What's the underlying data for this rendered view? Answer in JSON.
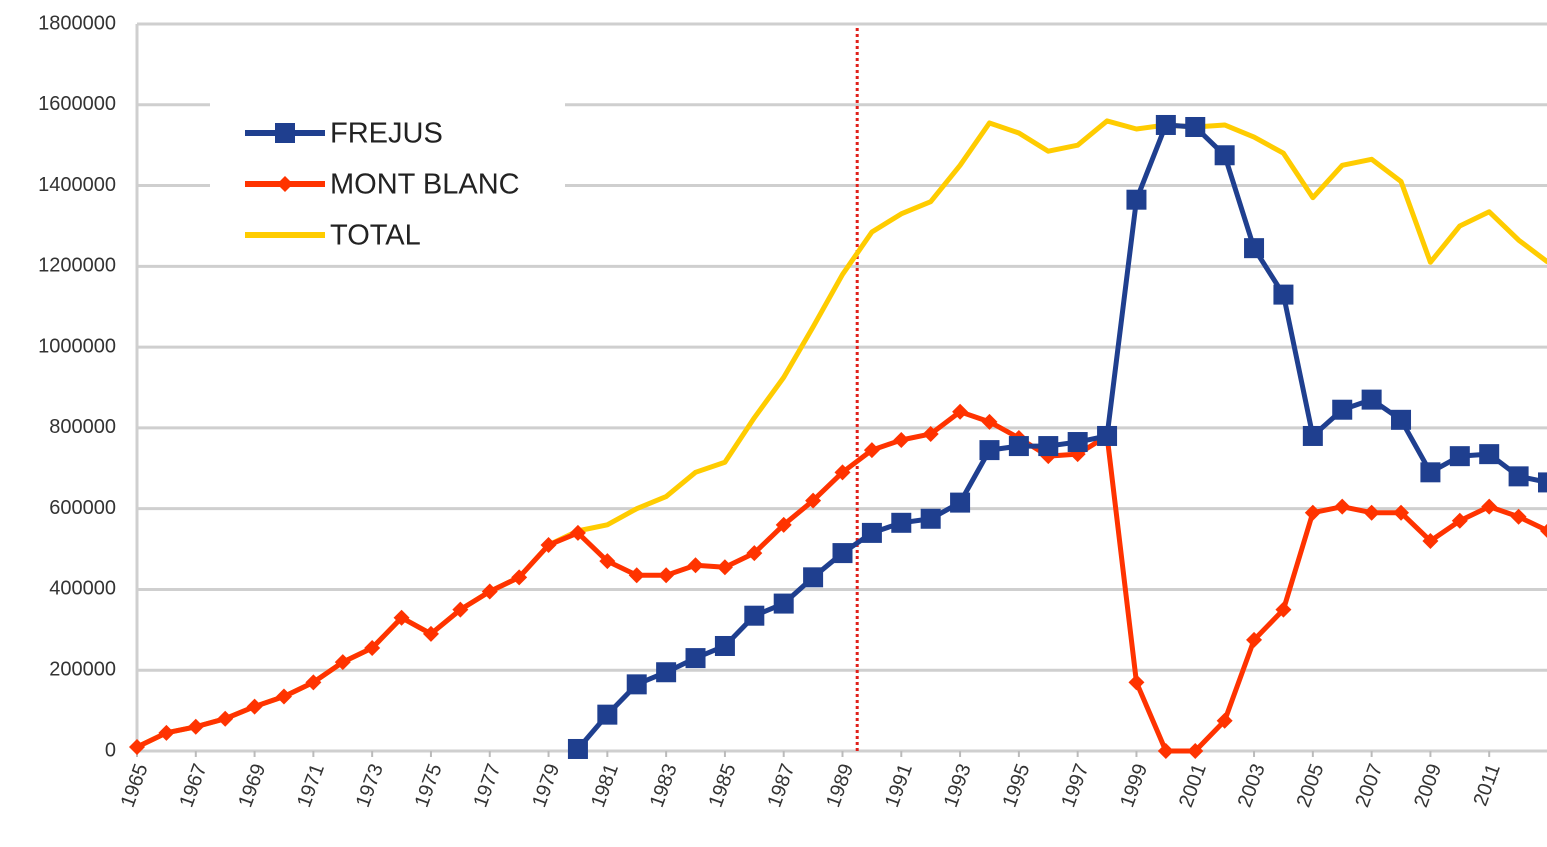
{
  "chart_data": {
    "type": "line",
    "x": [
      1965,
      1966,
      1967,
      1968,
      1969,
      1970,
      1971,
      1972,
      1973,
      1974,
      1975,
      1976,
      1977,
      1978,
      1979,
      1980,
      1981,
      1982,
      1983,
      1984,
      1985,
      1986,
      1987,
      1988,
      1989,
      1990,
      1991,
      1992,
      1993,
      1994,
      1995,
      1996,
      1997,
      1998,
      1999,
      2000,
      2001,
      2002,
      2003,
      2004,
      2005,
      2006,
      2007,
      2008,
      2009,
      2010,
      2011,
      2012,
      2013
    ],
    "series": [
      {
        "name": "FREJUS",
        "color": "#1f3f8f",
        "marker": "square",
        "values": [
          null,
          null,
          null,
          null,
          null,
          null,
          null,
          null,
          null,
          null,
          null,
          null,
          null,
          null,
          null,
          5000,
          90000,
          165000,
          195000,
          230000,
          260000,
          335000,
          365000,
          430000,
          490000,
          540000,
          565000,
          575000,
          615000,
          745000,
          755000,
          755000,
          765000,
          780000,
          1365000,
          1550000,
          1545000,
          1475000,
          1245000,
          1130000,
          780000,
          845000,
          870000,
          820000,
          690000,
          730000,
          735000,
          680000,
          665000
        ]
      },
      {
        "name": "MONT BLANC",
        "color": "#ff3300",
        "marker": "diamond",
        "values": [
          10000,
          45000,
          60000,
          80000,
          110000,
          135000,
          170000,
          220000,
          255000,
          330000,
          290000,
          350000,
          395000,
          430000,
          510000,
          540000,
          470000,
          435000,
          435000,
          460000,
          455000,
          490000,
          560000,
          620000,
          690000,
          745000,
          770000,
          785000,
          840000,
          815000,
          775000,
          730000,
          735000,
          780000,
          170000,
          0,
          0,
          75000,
          275000,
          350000,
          590000,
          605000,
          590000,
          590000,
          520000,
          570000,
          605000,
          580000,
          545000
        ]
      },
      {
        "name": "TOTAL",
        "color": "#ffcc00",
        "marker": "none",
        "values": [
          10000,
          45000,
          60000,
          80000,
          110000,
          135000,
          170000,
          220000,
          255000,
          330000,
          290000,
          350000,
          395000,
          430000,
          510000,
          545000,
          560000,
          600000,
          630000,
          690000,
          715000,
          825000,
          925000,
          1050000,
          1180000,
          1285000,
          1330000,
          1360000,
          1450000,
          1555000,
          1530000,
          1485000,
          1500000,
          1560000,
          1540000,
          1550000,
          1545000,
          1550000,
          1520000,
          1480000,
          1370000,
          1450000,
          1465000,
          1410000,
          1210000,
          1300000,
          1335000,
          1265000,
          1210000
        ]
      }
    ],
    "xlim": [
      1965,
      2013
    ],
    "xticks": [
      1965,
      1967,
      1969,
      1971,
      1973,
      1975,
      1977,
      1979,
      1981,
      1983,
      1985,
      1987,
      1989,
      1991,
      1993,
      1995,
      1997,
      1999,
      2001,
      2003,
      2005,
      2007,
      2009,
      2011
    ],
    "ylim": [
      0,
      1800000
    ],
    "yticks": [
      0,
      200000,
      400000,
      600000,
      800000,
      1000000,
      1200000,
      1400000,
      1600000,
      1800000
    ],
    "grid": true,
    "legend": "upper-left",
    "reference_line": {
      "x": 1989.5,
      "color": "#e0201a"
    }
  }
}
